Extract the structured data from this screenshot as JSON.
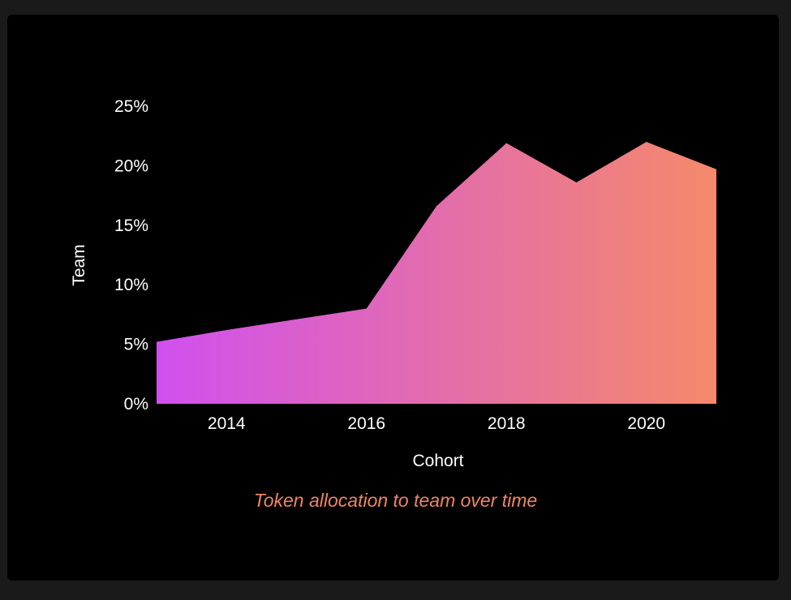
{
  "caption": "Token allocation to team over time",
  "colors": {
    "background": "#000000",
    "gradient_start": "#d050ef",
    "gradient_end": "#f5896a",
    "caption": "#f08462",
    "text": "#ffffff"
  },
  "chart_data": {
    "type": "area",
    "xlabel": "Cohort",
    "ylabel": "Team",
    "x": [
      2013,
      2014,
      2015,
      2016,
      2017,
      2018,
      2019,
      2020,
      2021
    ],
    "values": [
      5.2,
      6.2,
      7.1,
      8.0,
      16.6,
      21.9,
      18.6,
      22.0,
      19.7
    ],
    "xlim": [
      2013,
      2021
    ],
    "ylim": [
      0,
      25
    ],
    "x_ticks": [
      2014,
      2016,
      2018,
      2020
    ],
    "x_tick_labels": [
      "2014",
      "2016",
      "2018",
      "2020"
    ],
    "y_ticks": [
      0,
      5,
      10,
      15,
      20,
      25
    ],
    "y_tick_labels": [
      "0%",
      "5%",
      "10%",
      "15%",
      "20%",
      "25%"
    ],
    "grid": false,
    "legend": "none",
    "fill": "horizontal gradient purple to orange"
  }
}
